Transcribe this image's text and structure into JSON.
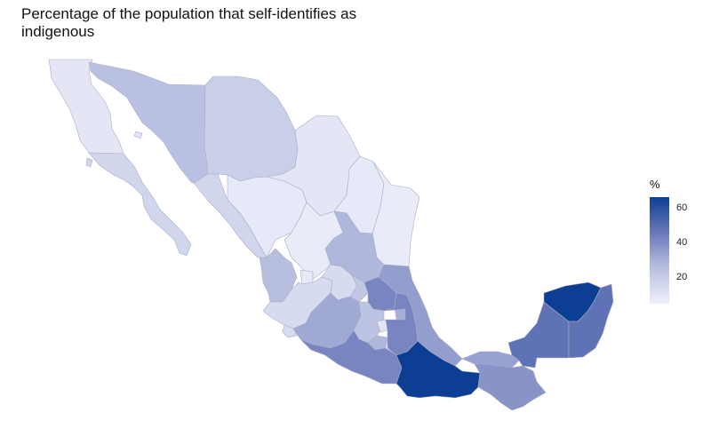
{
  "title": "Percentage of the population that self-identifies as indigenous",
  "legend": {
    "title": "%",
    "min": 5,
    "max": 66,
    "ticks": [
      {
        "label": "20",
        "value": 20
      },
      {
        "label": "40",
        "value": 40
      },
      {
        "label": "60",
        "value": 60
      }
    ]
  },
  "colors": {
    "low": "#eef0fb",
    "mid": "#b7bddf",
    "high": "#6d7bbb",
    "top": "#0c3f93",
    "border": "#a9adc6"
  },
  "map_data": {
    "type": "choropleth",
    "region": "Mexico",
    "unit": "%",
    "regions": [
      {
        "name": "Baja California",
        "value": 9
      },
      {
        "name": "Baja California Sur",
        "value": 16
      },
      {
        "name": "Sonora",
        "value": 25
      },
      {
        "name": "Chihuahua",
        "value": 19
      },
      {
        "name": "Coahuila",
        "value": 9
      },
      {
        "name": "Nuevo León",
        "value": 8
      },
      {
        "name": "Tamaulipas",
        "value": 7
      },
      {
        "name": "Sinaloa",
        "value": 16
      },
      {
        "name": "Durango",
        "value": 8
      },
      {
        "name": "Zacatecas",
        "value": 7
      },
      {
        "name": "Nayarit",
        "value": 26
      },
      {
        "name": "Aguascalientes",
        "value": 8
      },
      {
        "name": "Jalisco",
        "value": 14
      },
      {
        "name": "San Luis Potosí",
        "value": 28
      },
      {
        "name": "Guanajuato",
        "value": 14
      },
      {
        "name": "Querétaro",
        "value": 22
      },
      {
        "name": "Hidalgo",
        "value": 42
      },
      {
        "name": "Colima",
        "value": 14
      },
      {
        "name": "Michoacán",
        "value": 32
      },
      {
        "name": "Estado de México",
        "value": 24
      },
      {
        "name": "Ciudad de México",
        "value": 10
      },
      {
        "name": "Morelos",
        "value": 28
      },
      {
        "name": "Tlaxcala",
        "value": 30
      },
      {
        "name": "Puebla",
        "value": 42
      },
      {
        "name": "Veracruz",
        "value": 35
      },
      {
        "name": "Guerrero",
        "value": 42
      },
      {
        "name": "Oaxaca",
        "value": 66
      },
      {
        "name": "Tabasco",
        "value": 34
      },
      {
        "name": "Chiapas",
        "value": 38
      },
      {
        "name": "Campeche",
        "value": 48
      },
      {
        "name": "Yucatán",
        "value": 66
      },
      {
        "name": "Quintana Roo",
        "value": 48
      }
    ]
  }
}
